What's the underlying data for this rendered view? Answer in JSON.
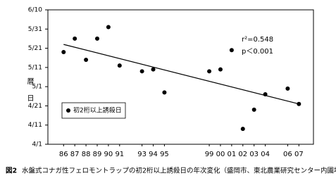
{
  "chart_data": {
    "type": "scatter",
    "y_label": "暦日",
    "annotations": [
      "r²=0.548",
      "p＜0.001"
    ],
    "figure_number": "図2",
    "caption": "水盤式コナガ性フェロモントラップの初2桁以上誘殺日の年次変化（盛岡市、東北農業研究センター内圃場）",
    "xlim": [
      1984.6,
      2008.3
    ],
    "xticks": [
      {
        "value": 1986,
        "label": "86"
      },
      {
        "value": 1987,
        "label": "87"
      },
      {
        "value": 1988,
        "label": "88"
      },
      {
        "value": 1989,
        "label": "89"
      },
      {
        "value": 1990,
        "label": "90"
      },
      {
        "value": 1991,
        "label": "91"
      },
      {
        "value": 1993,
        "label": "93"
      },
      {
        "value": 1994,
        "label": "94"
      },
      {
        "value": 1995,
        "label": "95"
      },
      {
        "value": 1999,
        "label": "99"
      },
      {
        "value": 2000,
        "label": "00"
      },
      {
        "value": 2001,
        "label": "01"
      },
      {
        "value": 2002,
        "label": "02"
      },
      {
        "value": 2003,
        "label": "03"
      },
      {
        "value": 2004,
        "label": "04"
      },
      {
        "value": 2006,
        "label": "06"
      },
      {
        "value": 2007,
        "label": "07"
      }
    ],
    "ylim": [
      91,
      161
    ],
    "yticks": [
      {
        "value": 91,
        "label": "4/1"
      },
      {
        "value": 101,
        "label": "4/11"
      },
      {
        "value": 111,
        "label": "4/21"
      },
      {
        "value": 121,
        "label": "5/1"
      },
      {
        "value": 131,
        "label": "5/11"
      },
      {
        "value": 141,
        "label": "5/21"
      },
      {
        "value": 151,
        "label": "5/31"
      },
      {
        "value": 161,
        "label": "6/10"
      }
    ],
    "series": [
      {
        "name": "初2桁以上誘殺日",
        "color": "#000000",
        "x": [
          1986,
          1987,
          1988,
          1989,
          1990,
          1991,
          1993,
          1994,
          1995,
          1999,
          2000,
          2001,
          2002,
          2003,
          2004,
          2006,
          2007
        ],
        "values": [
          139,
          146,
          135,
          146,
          152,
          132,
          129,
          130,
          118,
          129,
          130,
          140,
          99,
          109,
          117,
          120,
          112
        ]
      }
    ],
    "trendline": {
      "x": [
        1986,
        2007
      ],
      "values": [
        143,
        112
      ]
    }
  }
}
